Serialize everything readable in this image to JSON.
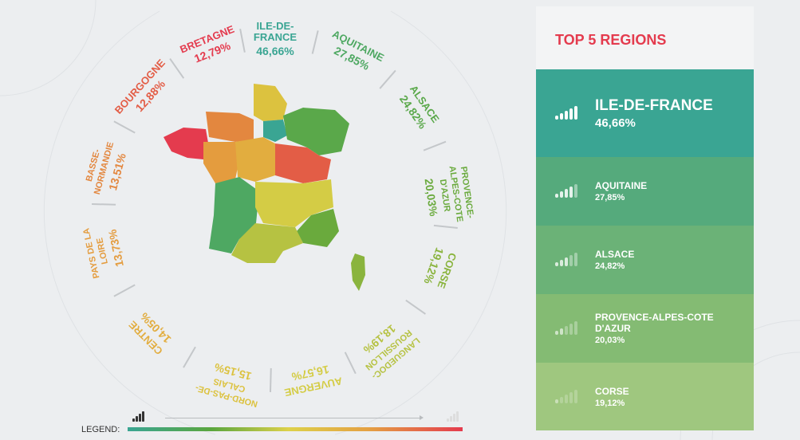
{
  "regions": [
    {
      "name": "ILE-DE-FRANCE",
      "value": "46,66%",
      "color": "#3aa593"
    },
    {
      "name": "AQUITAINE",
      "value": "27,85%",
      "color": "#4ea862"
    },
    {
      "name": "ALSACE",
      "value": "24,82%",
      "color": "#5aa84a"
    },
    {
      "name": "PROVENCE-ALPES-COTE D'AZUR",
      "value": "20,03%",
      "color": "#6aaa3d"
    },
    {
      "name": "CORSE",
      "value": "19,12%",
      "color": "#8ab43e"
    },
    {
      "name": "LANGUEDOC-ROUSSILLON",
      "value": "18,19%",
      "color": "#b6c242"
    },
    {
      "name": "AUVERGNE",
      "value": "16,57%",
      "color": "#d4cc45"
    },
    {
      "name": "NORD-PAS-DE-CALAIS",
      "value": "15,15%",
      "color": "#dcc23f"
    },
    {
      "name": "CENTRE",
      "value": "14,05%",
      "color": "#e2ad3f"
    },
    {
      "name": "PAYS DE LA LOIRE",
      "value": "13,73%",
      "color": "#e49c3e"
    },
    {
      "name": "BASSE-NORMANDIE",
      "value": "13,51%",
      "color": "#e3873f"
    },
    {
      "name": "BOURGOGNE",
      "value": "12,88%",
      "color": "#e35d46"
    },
    {
      "name": "BRETAGNE",
      "value": "12,79%",
      "color": "#e43b4e"
    }
  ],
  "panel": {
    "title": "TOP 5 REGIONS",
    "rows": [
      {
        "name": "ILE-DE-FRANCE",
        "value": "46,66%",
        "color": "#3aa593"
      },
      {
        "name": "AQUITAINE",
        "value": "27,85%",
        "color": "#55aa7c"
      },
      {
        "name": "ALSACE",
        "value": "24,82%",
        "color": "#6bb277"
      },
      {
        "name": "PROVENCE-ALPES-COTE D'AZUR",
        "value": "20,03%",
        "color": "#84bb73"
      },
      {
        "name": "CORSE",
        "value": "19,12%",
        "color": "#9fc77f"
      }
    ]
  },
  "legend": {
    "label": "LEGEND:"
  }
}
